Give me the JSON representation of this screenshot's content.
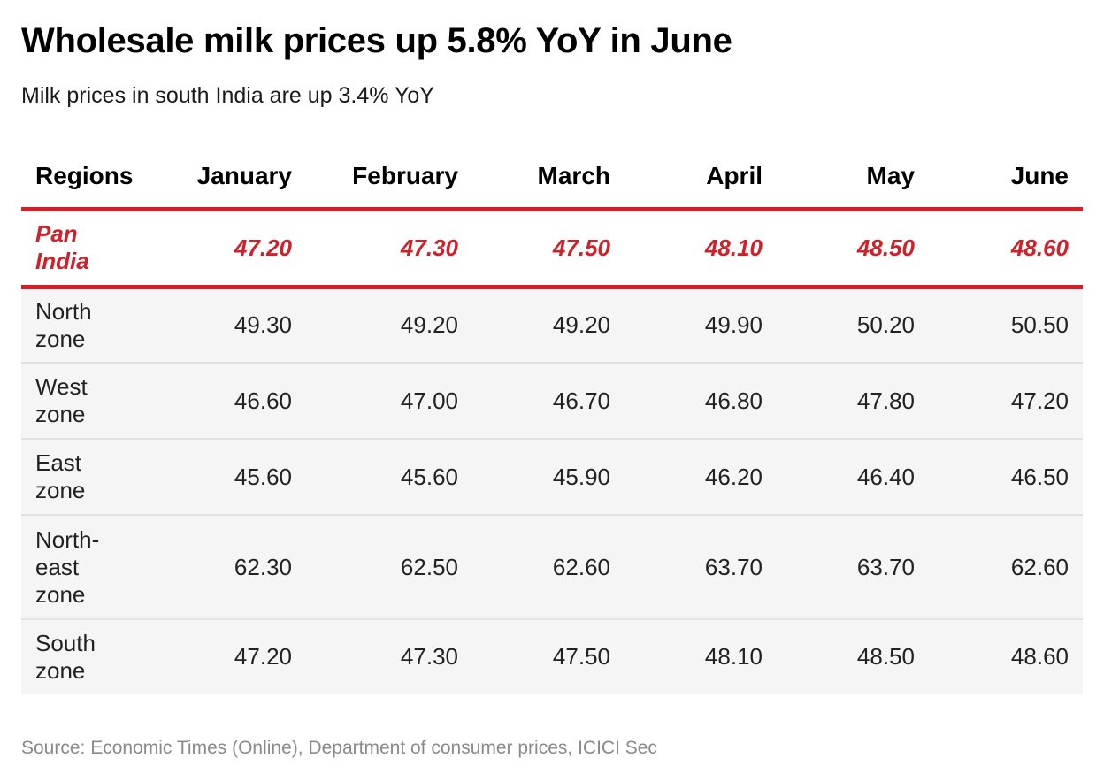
{
  "header": {
    "title": "Wholesale milk prices up 5.8% YoY in June",
    "subtitle": "Milk prices in south India are up 3.4% YoY"
  },
  "footer": {
    "source": "Source: Economic Times (Online), Department of consumer prices, ICICI Sec"
  },
  "colors": {
    "accent": "#d0202a",
    "zone_row_background": "#f5f5f5"
  },
  "chart_data": {
    "type": "table",
    "title": "Wholesale milk prices up 5.8% YoY in June",
    "subtitle": "Milk prices in south India are up 3.4% YoY",
    "columns": [
      "Regions",
      "January",
      "February",
      "March",
      "April",
      "May",
      "June"
    ],
    "rows": [
      {
        "region_lines": [
          "Pan",
          "India"
        ],
        "values": [
          "47.20",
          "47.30",
          "47.50",
          "48.10",
          "48.50",
          "48.60"
        ],
        "highlight": true
      },
      {
        "region_lines": [
          "North",
          "zone"
        ],
        "values": [
          "49.30",
          "49.20",
          "49.20",
          "49.90",
          "50.20",
          "50.50"
        ],
        "highlight": false
      },
      {
        "region_lines": [
          "West",
          "zone"
        ],
        "values": [
          "46.60",
          "47.00",
          "46.70",
          "46.80",
          "47.80",
          "47.20"
        ],
        "highlight": false
      },
      {
        "region_lines": [
          "East",
          "zone"
        ],
        "values": [
          "45.60",
          "45.60",
          "45.90",
          "46.20",
          "46.40",
          "46.50"
        ],
        "highlight": false
      },
      {
        "region_lines": [
          "North-",
          "east",
          "zone"
        ],
        "values": [
          "62.30",
          "62.50",
          "62.60",
          "63.70",
          "63.70",
          "62.60"
        ],
        "highlight": false
      },
      {
        "region_lines": [
          "South",
          "zone"
        ],
        "values": [
          "47.20",
          "47.30",
          "47.50",
          "48.10",
          "48.50",
          "48.60"
        ],
        "highlight": false
      }
    ]
  }
}
